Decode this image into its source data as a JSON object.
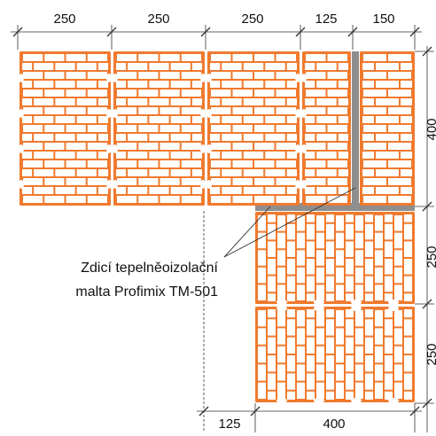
{
  "colors": {
    "brick": "#F07A2E",
    "mortar": "#8E8E8E",
    "dimension_line": "#333333",
    "text": "#111111"
  },
  "dimensions": {
    "top": [
      "250",
      "250",
      "250",
      "125",
      "150"
    ],
    "right": [
      "400",
      "250",
      "250"
    ],
    "bottom": [
      "125",
      "400"
    ]
  },
  "annotation": {
    "line1": "Zdicí tepelněoizolační",
    "line2": "malta Profimix TM-501"
  }
}
